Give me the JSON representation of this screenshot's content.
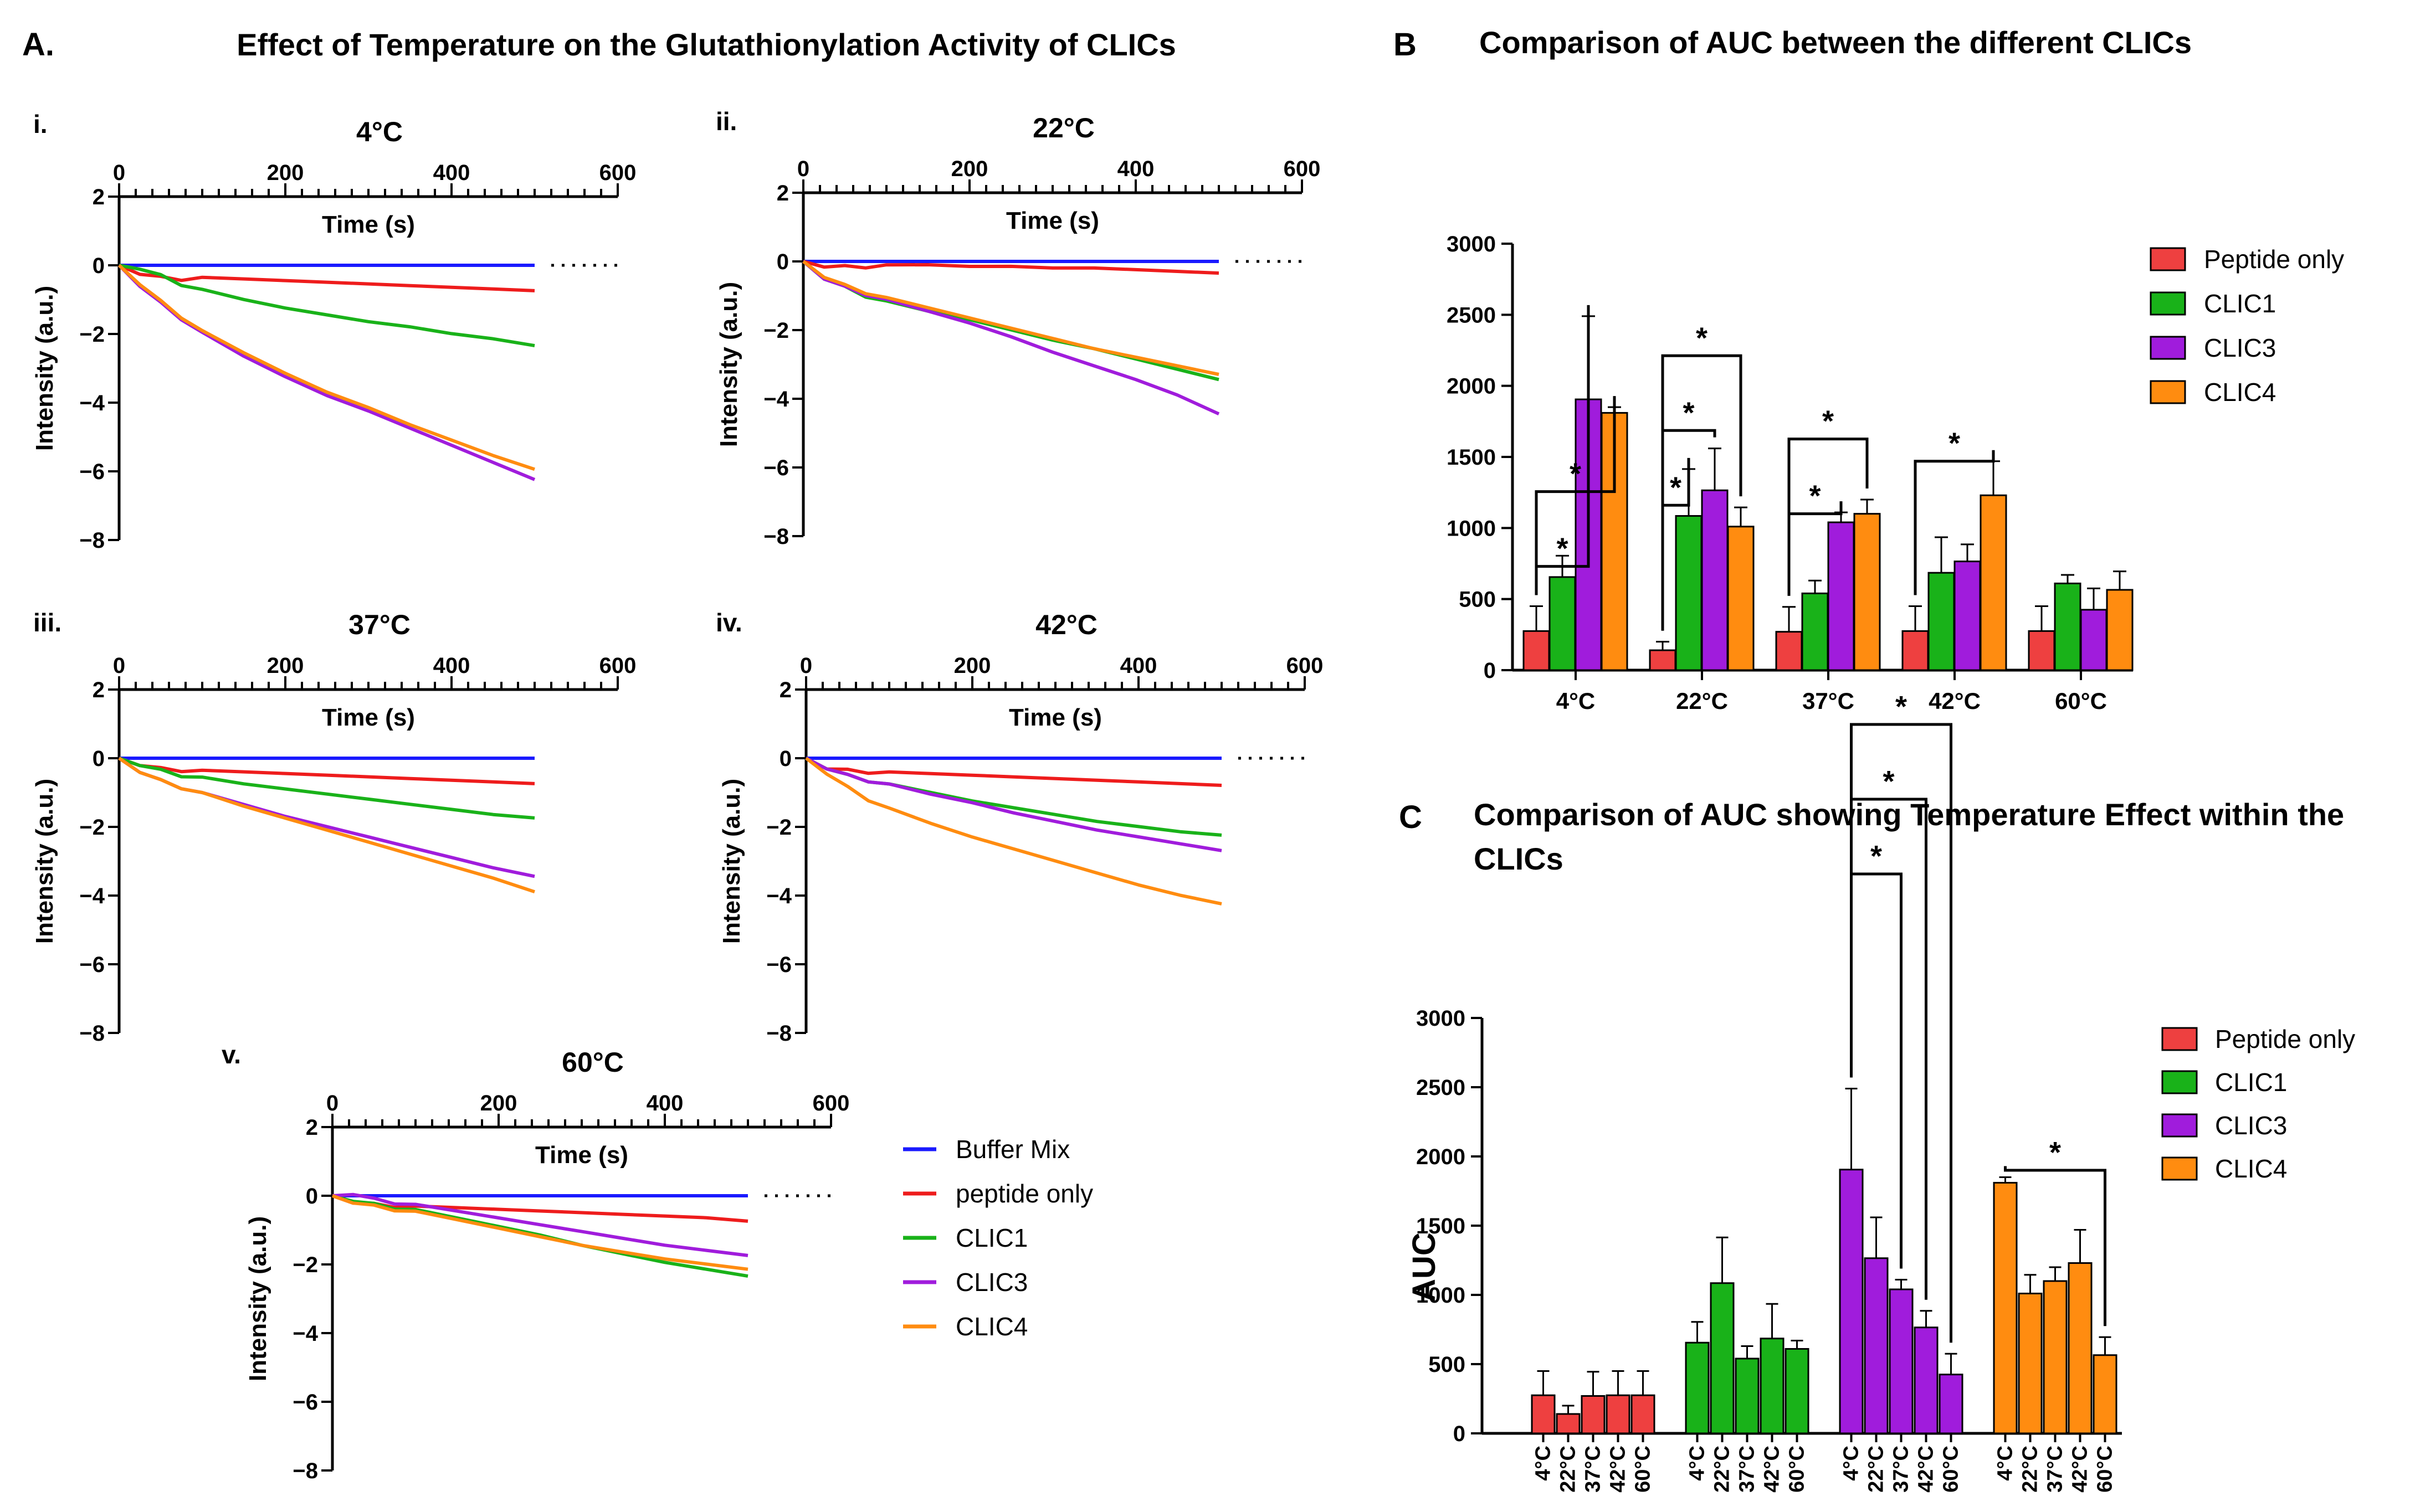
{
  "panel_letters": {
    "a": "A.",
    "b": "B",
    "c": "C"
  },
  "titles": {
    "a": "Effect of Temperature on the Glutathionylation Activity of CLICs",
    "b": "Comparison of AUC between the different CLICs",
    "c_line1": "Comparison of AUC showing Temperature Effect within the",
    "c_line2": "CLICs"
  },
  "series_colors": {
    "Buffer Mix": "#1a1aff",
    "peptide only": "#ee1c1c",
    "Peptide only": "#ee4040",
    "CLIC1": "#19b219",
    "CLIC3": "#a01cdc",
    "CLIC4": "#ff8c10"
  },
  "line_legend": [
    "Buffer Mix",
    "peptide only",
    "CLIC1",
    "CLIC3",
    "CLIC4"
  ],
  "chart_data": [
    {
      "type": "line",
      "id": "i",
      "label": "i.",
      "title": "4°C",
      "xlabel": "Time (s)",
      "ylabel": "Intensity (a.u.)",
      "xlim": [
        0,
        600
      ],
      "ylim": [
        -8,
        2
      ],
      "xticks": [
        0,
        200,
        400,
        600
      ],
      "yticks": [
        2,
        0,
        -2,
        -4,
        -6,
        -8
      ],
      "dotted_continuation": true,
      "x": [
        0,
        25,
        50,
        75,
        100,
        150,
        200,
        250,
        300,
        350,
        400,
        450,
        500
      ],
      "series": [
        {
          "name": "Buffer Mix",
          "values": [
            0,
            0,
            0,
            0,
            0,
            0,
            0,
            0,
            0,
            0,
            0,
            0,
            0
          ]
        },
        {
          "name": "peptide only",
          "values": [
            0,
            -0.25,
            -0.35,
            -0.4,
            -0.4,
            -0.45,
            -0.5,
            -0.55,
            -0.6,
            -0.65,
            -0.7,
            -0.75,
            -0.8
          ]
        },
        {
          "name": "CLIC1",
          "values": [
            0,
            -0.1,
            -0.3,
            -0.55,
            -0.75,
            -1.05,
            -1.3,
            -1.5,
            -1.7,
            -1.85,
            -2.05,
            -2.2,
            -2.4
          ]
        },
        {
          "name": "CLIC3",
          "values": [
            0,
            -0.6,
            -1.1,
            -1.55,
            -2.0,
            -2.7,
            -3.3,
            -3.85,
            -4.3,
            -4.8,
            -5.3,
            -5.8,
            -6.3
          ]
        },
        {
          "name": "CLIC4",
          "values": [
            0,
            -0.55,
            -1.05,
            -1.5,
            -1.95,
            -2.6,
            -3.2,
            -3.75,
            -4.2,
            -4.7,
            -5.15,
            -5.6,
            -6.0
          ]
        }
      ]
    },
    {
      "type": "line",
      "id": "ii",
      "label": "ii.",
      "title": "22°C",
      "xlabel": "Time (s)",
      "ylabel": "Intensity (a.u.)",
      "xlim": [
        0,
        600
      ],
      "ylim": [
        -8,
        2
      ],
      "xticks": [
        0,
        200,
        400,
        600
      ],
      "yticks": [
        2,
        0,
        -2,
        -4,
        -6,
        -8
      ],
      "dotted_continuation": true,
      "x": [
        0,
        25,
        50,
        75,
        100,
        150,
        200,
        250,
        300,
        350,
        400,
        450,
        500
      ],
      "series": [
        {
          "name": "Buffer Mix",
          "values": [
            0,
            0,
            0,
            0,
            0,
            0,
            0,
            0,
            0,
            0,
            0,
            0,
            0
          ]
        },
        {
          "name": "peptide only",
          "values": [
            0,
            -0.15,
            -0.15,
            -0.15,
            -0.15,
            -0.15,
            -0.2,
            -0.2,
            -0.25,
            -0.25,
            -0.3,
            -0.35,
            -0.4
          ]
        },
        {
          "name": "CLIC1",
          "values": [
            0,
            -0.5,
            -0.75,
            -1.0,
            -1.2,
            -1.5,
            -1.75,
            -2.05,
            -2.35,
            -2.6,
            -2.9,
            -3.2,
            -3.5
          ]
        },
        {
          "name": "CLIC3",
          "values": [
            0,
            -0.5,
            -0.75,
            -0.95,
            -1.15,
            -1.5,
            -1.85,
            -2.25,
            -2.7,
            -3.1,
            -3.5,
            -3.95,
            -4.5
          ]
        },
        {
          "name": "CLIC4",
          "values": [
            0,
            -0.45,
            -0.7,
            -0.9,
            -1.1,
            -1.4,
            -1.7,
            -2.0,
            -2.3,
            -2.6,
            -2.85,
            -3.1,
            -3.35
          ]
        }
      ]
    },
    {
      "type": "line",
      "id": "iii",
      "label": "iii.",
      "title": "37°C",
      "xlabel": "Time (s)",
      "ylabel": "Intensity (a.u.)",
      "xlim": [
        0,
        600
      ],
      "ylim": [
        -8,
        2
      ],
      "xticks": [
        0,
        200,
        400,
        600
      ],
      "yticks": [
        2,
        0,
        -2,
        -4,
        -6,
        -8
      ],
      "dotted_continuation": false,
      "x": [
        0,
        25,
        50,
        75,
        100,
        150,
        200,
        250,
        300,
        350,
        400,
        450,
        500
      ],
      "series": [
        {
          "name": "Buffer Mix",
          "values": [
            0,
            0,
            0,
            0,
            0,
            0,
            0,
            0,
            0,
            0,
            0,
            0,
            0
          ]
        },
        {
          "name": "peptide only",
          "values": [
            0,
            -0.2,
            -0.3,
            -0.35,
            -0.4,
            -0.45,
            -0.5,
            -0.55,
            -0.6,
            -0.65,
            -0.7,
            -0.75,
            -0.8
          ]
        },
        {
          "name": "CLIC1",
          "values": [
            0,
            -0.2,
            -0.35,
            -0.5,
            -0.6,
            -0.8,
            -0.95,
            -1.1,
            -1.25,
            -1.4,
            -1.55,
            -1.7,
            -1.8
          ]
        },
        {
          "name": "CLIC3",
          "values": [
            0,
            -0.4,
            -0.65,
            -0.85,
            -1.05,
            -1.4,
            -1.75,
            -2.05,
            -2.35,
            -2.65,
            -2.95,
            -3.25,
            -3.5
          ]
        },
        {
          "name": "CLIC4",
          "values": [
            0,
            -0.4,
            -0.65,
            -0.85,
            -1.05,
            -1.45,
            -1.8,
            -2.15,
            -2.5,
            -2.85,
            -3.2,
            -3.55,
            -3.95
          ]
        }
      ]
    },
    {
      "type": "line",
      "id": "iv",
      "label": "iv.",
      "title": "42°C",
      "xlabel": "Time (s)",
      "ylabel": "Intensity (a.u.)",
      "xlim": [
        0,
        600
      ],
      "ylim": [
        -8,
        2
      ],
      "xticks": [
        0,
        200,
        400,
        600
      ],
      "yticks": [
        2,
        0,
        -2,
        -4,
        -6,
        -8
      ],
      "dotted_continuation": true,
      "x": [
        0,
        25,
        50,
        75,
        100,
        150,
        200,
        250,
        300,
        350,
        400,
        450,
        500
      ],
      "series": [
        {
          "name": "Buffer Mix",
          "values": [
            0,
            0,
            0,
            0,
            0,
            0,
            0,
            0,
            0,
            0,
            0,
            0,
            0
          ]
        },
        {
          "name": "peptide only",
          "values": [
            0,
            -0.3,
            -0.35,
            -0.4,
            -0.45,
            -0.5,
            -0.55,
            -0.6,
            -0.65,
            -0.7,
            -0.75,
            -0.8,
            -0.85
          ]
        },
        {
          "name": "CLIC1",
          "values": [
            0,
            -0.3,
            -0.5,
            -0.65,
            -0.8,
            -1.05,
            -1.3,
            -1.5,
            -1.7,
            -1.9,
            -2.05,
            -2.2,
            -2.3
          ]
        },
        {
          "name": "CLIC3",
          "values": [
            0,
            -0.3,
            -0.5,
            -0.65,
            -0.8,
            -1.1,
            -1.35,
            -1.65,
            -1.9,
            -2.15,
            -2.35,
            -2.55,
            -2.75
          ]
        },
        {
          "name": "CLIC4",
          "values": [
            0,
            -0.45,
            -0.85,
            -1.2,
            -1.5,
            -1.95,
            -2.35,
            -2.7,
            -3.05,
            -3.4,
            -3.75,
            -4.05,
            -4.3
          ]
        }
      ]
    },
    {
      "type": "line",
      "id": "v",
      "label": "v.",
      "title": "60°C",
      "xlabel": "Time (s)",
      "ylabel": "Intensity (a.u.)",
      "xlim": [
        0,
        600
      ],
      "ylim": [
        -8,
        2
      ],
      "xticks": [
        0,
        200,
        400,
        600
      ],
      "yticks": [
        2,
        0,
        -2,
        -4,
        -6,
        -8
      ],
      "dotted_continuation": true,
      "x": [
        0,
        25,
        50,
        75,
        100,
        150,
        200,
        250,
        300,
        350,
        400,
        450,
        500
      ],
      "series": [
        {
          "name": "Buffer Mix",
          "values": [
            0,
            0,
            0,
            0,
            0,
            0,
            0,
            0,
            0,
            0,
            0,
            0,
            0
          ]
        },
        {
          "name": "peptide only",
          "values": [
            0,
            -0.2,
            -0.25,
            -0.3,
            -0.35,
            -0.4,
            -0.45,
            -0.5,
            -0.55,
            -0.6,
            -0.65,
            -0.7,
            -0.8
          ]
        },
        {
          "name": "CLIC1",
          "values": [
            0,
            -0.15,
            -0.25,
            -0.35,
            -0.45,
            -0.7,
            -0.95,
            -1.2,
            -1.5,
            -1.75,
            -2.0,
            -2.2,
            -2.4
          ]
        },
        {
          "name": "CLIC3",
          "values": [
            0,
            0.05,
            -0.1,
            -0.2,
            -0.3,
            -0.5,
            -0.7,
            -0.9,
            -1.1,
            -1.3,
            -1.5,
            -1.65,
            -1.8
          ]
        },
        {
          "name": "CLIC4",
          "values": [
            0,
            -0.2,
            -0.3,
            -0.4,
            -0.5,
            -0.75,
            -1.0,
            -1.25,
            -1.5,
            -1.7,
            -1.9,
            -2.05,
            -2.2
          ]
        }
      ]
    },
    {
      "type": "bar",
      "id": "B",
      "title": "Comparison of AUC between the different CLICs",
      "categories": [
        "4°C",
        "22°C",
        "37°C",
        "42°C",
        "60°C"
      ],
      "ylim": [
        0,
        3000
      ],
      "yticks": [
        0,
        500,
        1000,
        1500,
        2000,
        2500,
        3000
      ],
      "legend": [
        "Peptide only",
        "CLIC1",
        "CLIC3",
        "CLIC4"
      ],
      "series": [
        {
          "name": "Peptide only",
          "values": [
            275,
            140,
            270,
            275,
            275
          ],
          "errors": [
            175,
            60,
            175,
            175,
            175
          ]
        },
        {
          "name": "CLIC1",
          "values": [
            655,
            1085,
            540,
            685,
            610
          ],
          "errors": [
            150,
            330,
            90,
            250,
            60
          ]
        },
        {
          "name": "CLIC3",
          "values": [
            1905,
            1265,
            1040,
            765,
            425
          ],
          "errors": [
            585,
            295,
            70,
            120,
            150
          ]
        },
        {
          "name": "CLIC4",
          "values": [
            1810,
            1010,
            1100,
            1230,
            565
          ],
          "errors": [
            40,
            135,
            100,
            240,
            130
          ]
        }
      ],
      "significance": [
        {
          "group": "4°C",
          "from": "Peptide only",
          "to": "CLIC3",
          "level": 1,
          "label": "*"
        },
        {
          "group": "4°C",
          "from": "Peptide only",
          "to": "CLIC4",
          "level": 2,
          "label": "*"
        },
        {
          "group": "22°C",
          "from": "Peptide only",
          "to": "CLIC1",
          "level": 1,
          "label": "*"
        },
        {
          "group": "22°C",
          "from": "Peptide only",
          "to": "CLIC3",
          "level": 2,
          "label": "*"
        },
        {
          "group": "22°C",
          "from": "Peptide only",
          "to": "CLIC4",
          "level": 3,
          "label": "*"
        },
        {
          "group": "37°C",
          "from": "Peptide only",
          "to": "CLIC3",
          "level": 1,
          "label": "*"
        },
        {
          "group": "37°C",
          "from": "Peptide only",
          "to": "CLIC4",
          "level": 2,
          "label": "*"
        },
        {
          "group": "42°C",
          "from": "Peptide only",
          "to": "CLIC4",
          "level": 1,
          "label": "*"
        }
      ]
    },
    {
      "type": "bar",
      "id": "C",
      "title": "Comparison of AUC showing Temperature Effect within the CLICs",
      "ylabel": "AUC",
      "groups": [
        "Peptide only",
        "CLIC1",
        "CLIC3",
        "CLIC4"
      ],
      "categories": [
        "4°C",
        "22°C",
        "37°C",
        "42°C",
        "60°C"
      ],
      "ylim": [
        0,
        3000
      ],
      "yticks": [
        0,
        500,
        1000,
        1500,
        2000,
        2500,
        3000
      ],
      "legend": [
        "Peptide only",
        "CLIC1",
        "CLIC3",
        "CLIC4"
      ],
      "series": [
        {
          "name": "Peptide only",
          "values": [
            275,
            140,
            270,
            275,
            275
          ],
          "errors": [
            175,
            60,
            175,
            175,
            175
          ]
        },
        {
          "name": "CLIC1",
          "values": [
            655,
            1085,
            540,
            685,
            610
          ],
          "errors": [
            150,
            330,
            90,
            250,
            60
          ]
        },
        {
          "name": "CLIC3",
          "values": [
            1905,
            1265,
            1040,
            765,
            425
          ],
          "errors": [
            585,
            295,
            70,
            120,
            150
          ]
        },
        {
          "name": "CLIC4",
          "values": [
            1810,
            1010,
            1100,
            1230,
            565
          ],
          "errors": [
            40,
            135,
            100,
            240,
            130
          ]
        }
      ],
      "significance": [
        {
          "group": "CLIC3",
          "from": "4°C",
          "to": "37°C",
          "level": 1,
          "label": "*"
        },
        {
          "group": "CLIC3",
          "from": "4°C",
          "to": "42°C",
          "level": 2,
          "label": "*"
        },
        {
          "group": "CLIC3",
          "from": "4°C",
          "to": "60°C",
          "level": 3,
          "label": "*"
        },
        {
          "group": "CLIC4",
          "from": "4°C",
          "to": "60°C",
          "level": 1,
          "label": "*"
        }
      ]
    }
  ]
}
